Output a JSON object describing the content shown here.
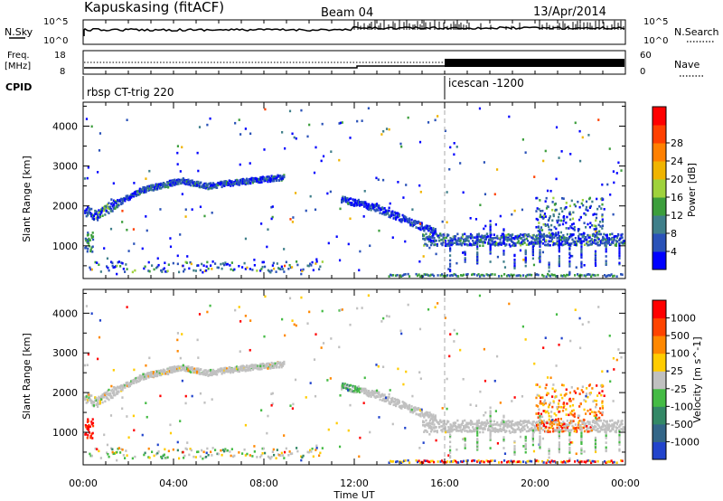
{
  "header": {
    "station": "Kapuskasing (fitACF)",
    "beam": "Beam 04",
    "date": "13/Apr/2014"
  },
  "noise_panel": {
    "left_label": "N.Sky",
    "right_label": "N.Search",
    "left_ticks": [
      "10^5",
      "10^0"
    ],
    "right_ticks": [
      "10^5",
      "10^0"
    ]
  },
  "freq_panel": {
    "left_label_top": "Freq.",
    "left_label_bottom": "[MHz]",
    "left_ticks": [
      "18",
      "8"
    ],
    "right_label": "Nave",
    "right_ticks": [
      "60",
      "0"
    ]
  },
  "cpid_panel": {
    "label": "CPID",
    "segments": [
      {
        "start_hour": 0,
        "name": "rbsp CT-trig 220"
      },
      {
        "start_hour": 16,
        "name": "icescan -1200"
      }
    ]
  },
  "x_axis": {
    "label": "Time UT",
    "tick_labels": [
      "00:00",
      "04:00",
      "08:00",
      "12:00",
      "16:00",
      "20:00",
      "00:00"
    ],
    "range_hours": [
      0,
      24
    ]
  },
  "chart_data": [
    {
      "type": "heatmap",
      "name": "power",
      "ylabel": "Slant Range [km]",
      "ylim": [
        180,
        4600
      ],
      "y_ticks": [
        1000,
        2000,
        3000,
        4000
      ],
      "colorbar": {
        "label": "Power [dB]",
        "tick_labels": [
          "4",
          "8",
          "12",
          "16",
          "20",
          "24",
          "28"
        ],
        "colors": [
          "#0000ff",
          "#2a52b8",
          "#3f7f8a",
          "#3c9e3c",
          "#9fd23c",
          "#f0b400",
          "#ff8000",
          "#ff4000",
          "#ff0000"
        ]
      }
    },
    {
      "type": "heatmap",
      "name": "velocity",
      "ylabel": "Slant Range [km]",
      "ylim": [
        180,
        4600
      ],
      "y_ticks": [
        1000,
        2000,
        3000,
        4000
      ],
      "colorbar": {
        "label": "Velocity [m s^-1]",
        "tick_labels": [
          "1000",
          "500",
          "100",
          "25",
          "-25",
          "-100",
          "-500",
          "-1000"
        ],
        "colors": [
          "#2244cc",
          "#336688",
          "#338866",
          "#44bb44",
          "#c0c0c0",
          "#ffcc00",
          "#ff8800",
          "#ff4400",
          "#ff0000"
        ]
      }
    }
  ]
}
